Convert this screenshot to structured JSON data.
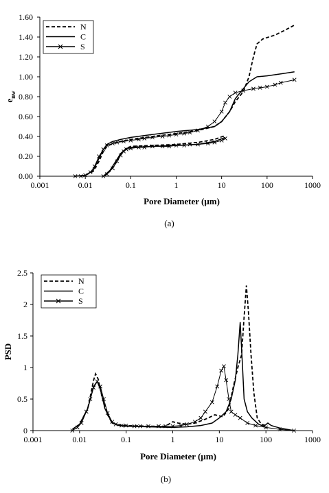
{
  "chart_data": [
    {
      "id": "a",
      "type": "line",
      "caption": "(a)",
      "xlabel": "Pore Diameter (μm)",
      "ylabel": "e",
      "ylabel_sub": "nw",
      "xscale": "log",
      "xlim": [
        0.001,
        1000
      ],
      "ylim": [
        0,
        1.6
      ],
      "xticks": [
        "0.001",
        "0.01",
        "0.1",
        "1",
        "10",
        "100",
        "1000"
      ],
      "yticks": [
        "0.00",
        "0.20",
        "0.40",
        "0.60",
        "0.80",
        "1.00",
        "1.20",
        "1.40",
        "1.60"
      ],
      "legend_position": "top-left",
      "series": [
        {
          "name": "N",
          "style": "dashed",
          "marker": "none",
          "branches": [
            [
              [
                0.006,
                0.0
              ],
              [
                0.01,
                0.01
              ],
              [
                0.015,
                0.05
              ],
              [
                0.02,
                0.15
              ],
              [
                0.025,
                0.25
              ],
              [
                0.03,
                0.3
              ],
              [
                0.04,
                0.33
              ],
              [
                0.06,
                0.35
              ],
              [
                0.1,
                0.37
              ],
              [
                0.3,
                0.4
              ],
              [
                1,
                0.43
              ],
              [
                3,
                0.46
              ],
              [
                7,
                0.5
              ],
              [
                10,
                0.55
              ],
              [
                15,
                0.65
              ],
              [
                20,
                0.75
              ],
              [
                30,
                0.85
              ],
              [
                40,
                1.0
              ],
              [
                50,
                1.2
              ],
              [
                60,
                1.33
              ],
              [
                80,
                1.38
              ],
              [
                150,
                1.42
              ],
              [
                250,
                1.47
              ],
              [
                400,
                1.52
              ]
            ],
            [
              [
                0.025,
                0.0
              ],
              [
                0.035,
                0.05
              ],
              [
                0.05,
                0.15
              ],
              [
                0.06,
                0.22
              ],
              [
                0.08,
                0.28
              ],
              [
                0.1,
                0.3
              ],
              [
                0.3,
                0.31
              ],
              [
                1,
                0.32
              ],
              [
                3,
                0.34
              ],
              [
                7,
                0.37
              ],
              [
                12,
                0.41
              ]
            ]
          ]
        },
        {
          "name": "C",
          "style": "solid",
          "marker": "none",
          "branches": [
            [
              [
                0.006,
                0.0
              ],
              [
                0.01,
                0.01
              ],
              [
                0.015,
                0.06
              ],
              [
                0.02,
                0.18
              ],
              [
                0.025,
                0.27
              ],
              [
                0.03,
                0.32
              ],
              [
                0.04,
                0.35
              ],
              [
                0.06,
                0.37
              ],
              [
                0.1,
                0.39
              ],
              [
                0.3,
                0.42
              ],
              [
                1,
                0.45
              ],
              [
                3,
                0.47
              ],
              [
                7,
                0.5
              ],
              [
                10,
                0.55
              ],
              [
                15,
                0.65
              ],
              [
                20,
                0.78
              ],
              [
                30,
                0.88
              ],
              [
                40,
                0.95
              ],
              [
                60,
                1.0
              ],
              [
                100,
                1.01
              ],
              [
                200,
                1.03
              ],
              [
                400,
                1.05
              ]
            ],
            [
              [
                0.025,
                0.0
              ],
              [
                0.035,
                0.06
              ],
              [
                0.05,
                0.17
              ],
              [
                0.06,
                0.23
              ],
              [
                0.08,
                0.28
              ],
              [
                0.1,
                0.29
              ],
              [
                0.3,
                0.3
              ],
              [
                1,
                0.31
              ],
              [
                3,
                0.32
              ],
              [
                7,
                0.35
              ],
              [
                12,
                0.39
              ]
            ]
          ]
        },
        {
          "name": "S",
          "style": "solid",
          "marker": "x",
          "branches": [
            [
              [
                0.006,
                0.0
              ],
              [
                0.008,
                0.0
              ],
              [
                0.01,
                0.01
              ],
              [
                0.013,
                0.04
              ],
              [
                0.016,
                0.1
              ],
              [
                0.02,
                0.2
              ],
              [
                0.025,
                0.27
              ],
              [
                0.03,
                0.31
              ],
              [
                0.04,
                0.33
              ],
              [
                0.05,
                0.34
              ],
              [
                0.07,
                0.35
              ],
              [
                0.1,
                0.36
              ],
              [
                0.15,
                0.37
              ],
              [
                0.2,
                0.38
              ],
              [
                0.3,
                0.39
              ],
              [
                0.5,
                0.4
              ],
              [
                0.7,
                0.41
              ],
              [
                1,
                0.42
              ],
              [
                1.5,
                0.43
              ],
              [
                2,
                0.44
              ],
              [
                3,
                0.46
              ],
              [
                5,
                0.5
              ],
              [
                7,
                0.55
              ],
              [
                10,
                0.65
              ],
              [
                12,
                0.74
              ],
              [
                15,
                0.8
              ],
              [
                20,
                0.84
              ],
              [
                30,
                0.86
              ],
              [
                50,
                0.88
              ],
              [
                70,
                0.89
              ],
              [
                100,
                0.9
              ],
              [
                150,
                0.92
              ],
              [
                200,
                0.94
              ],
              [
                400,
                0.97
              ]
            ],
            [
              [
                0.025,
                0.0
              ],
              [
                0.03,
                0.02
              ],
              [
                0.04,
                0.08
              ],
              [
                0.05,
                0.15
              ],
              [
                0.06,
                0.21
              ],
              [
                0.07,
                0.25
              ],
              [
                0.08,
                0.27
              ],
              [
                0.1,
                0.28
              ],
              [
                0.15,
                0.29
              ],
              [
                0.2,
                0.29
              ],
              [
                0.3,
                0.3
              ],
              [
                0.5,
                0.3
              ],
              [
                0.7,
                0.3
              ],
              [
                1,
                0.31
              ],
              [
                1.5,
                0.31
              ],
              [
                2,
                0.32
              ],
              [
                3,
                0.32
              ],
              [
                5,
                0.33
              ],
              [
                7,
                0.34
              ],
              [
                10,
                0.36
              ],
              [
                12,
                0.38
              ]
            ]
          ]
        }
      ]
    },
    {
      "id": "b",
      "type": "line",
      "caption": "(b)",
      "xlabel": "Pore Diameter (μm)",
      "ylabel": "PSD",
      "xscale": "log",
      "xlim": [
        0.001,
        1000
      ],
      "ylim": [
        0,
        2.5
      ],
      "xticks": [
        "0.001",
        "0.01",
        "0.1",
        "1",
        "10",
        "100",
        "1000"
      ],
      "yticks": [
        "0",
        "0.5",
        "1",
        "1.5",
        "2",
        "2.5"
      ],
      "legend_position": "top-left",
      "series": [
        {
          "name": "N",
          "style": "dashed",
          "marker": "none",
          "branches": [
            [
              [
                0.007,
                0.02
              ],
              [
                0.01,
                0.1
              ],
              [
                0.015,
                0.35
              ],
              [
                0.02,
                0.8
              ],
              [
                0.022,
                0.9
              ],
              [
                0.025,
                0.82
              ],
              [
                0.03,
                0.55
              ],
              [
                0.04,
                0.25
              ],
              [
                0.05,
                0.12
              ],
              [
                0.07,
                0.09
              ],
              [
                0.1,
                0.08
              ],
              [
                0.3,
                0.07
              ],
              [
                0.7,
                0.07
              ],
              [
                1,
                0.14
              ],
              [
                1.3,
                0.12
              ],
              [
                2,
                0.1
              ],
              [
                3,
                0.12
              ],
              [
                5,
                0.18
              ],
              [
                8,
                0.25
              ],
              [
                12,
                0.22
              ],
              [
                16,
                0.35
              ],
              [
                20,
                0.7
              ],
              [
                25,
                1.0
              ],
              [
                30,
                1.2
              ],
              [
                34,
                1.8
              ],
              [
                38,
                2.3
              ],
              [
                42,
                1.9
              ],
              [
                48,
                1.2
              ],
              [
                55,
                0.6
              ],
              [
                65,
                0.2
              ],
              [
                80,
                0.1
              ],
              [
                100,
                0.08
              ]
            ]
          ]
        },
        {
          "name": "C",
          "style": "solid",
          "marker": "none",
          "branches": [
            [
              [
                0.007,
                0.02
              ],
              [
                0.01,
                0.1
              ],
              [
                0.015,
                0.35
              ],
              [
                0.02,
                0.7
              ],
              [
                0.024,
                0.78
              ],
              [
                0.028,
                0.65
              ],
              [
                0.035,
                0.35
              ],
              [
                0.05,
                0.12
              ],
              [
                0.07,
                0.08
              ],
              [
                0.1,
                0.07
              ],
              [
                0.3,
                0.06
              ],
              [
                1,
                0.05
              ],
              [
                2,
                0.06
              ],
              [
                4,
                0.08
              ],
              [
                7,
                0.12
              ],
              [
                10,
                0.2
              ],
              [
                14,
                0.3
              ],
              [
                18,
                0.5
              ],
              [
                22,
                0.8
              ],
              [
                25,
                1.2
              ],
              [
                28,
                1.72
              ],
              [
                31,
                1.1
              ],
              [
                34,
                0.5
              ],
              [
                40,
                0.3
              ],
              [
                50,
                0.2
              ],
              [
                70,
                0.1
              ],
              [
                90,
                0.07
              ],
              [
                110,
                0.12
              ],
              [
                130,
                0.08
              ],
              [
                200,
                0.04
              ],
              [
                400,
                0.0
              ]
            ]
          ]
        },
        {
          "name": "S",
          "style": "solid",
          "marker": "x",
          "branches": [
            [
              [
                0.007,
                0.0
              ],
              [
                0.009,
                0.05
              ],
              [
                0.011,
                0.12
              ],
              [
                0.014,
                0.3
              ],
              [
                0.017,
                0.5
              ],
              [
                0.02,
                0.68
              ],
              [
                0.024,
                0.78
              ],
              [
                0.028,
                0.7
              ],
              [
                0.033,
                0.5
              ],
              [
                0.04,
                0.28
              ],
              [
                0.05,
                0.14
              ],
              [
                0.06,
                0.1
              ],
              [
                0.08,
                0.08
              ],
              [
                0.1,
                0.08
              ],
              [
                0.15,
                0.07
              ],
              [
                0.2,
                0.07
              ],
              [
                0.3,
                0.07
              ],
              [
                0.5,
                0.07
              ],
              [
                0.7,
                0.07
              ],
              [
                1,
                0.07
              ],
              [
                1.5,
                0.08
              ],
              [
                2,
                0.1
              ],
              [
                3,
                0.14
              ],
              [
                4,
                0.2
              ],
              [
                5,
                0.3
              ],
              [
                7,
                0.45
              ],
              [
                9,
                0.7
              ],
              [
                11,
                0.95
              ],
              [
                12.5,
                1.02
              ],
              [
                14,
                0.8
              ],
              [
                16,
                0.5
              ],
              [
                18,
                0.3
              ],
              [
                22,
                0.25
              ],
              [
                28,
                0.2
              ],
              [
                40,
                0.12
              ],
              [
                60,
                0.08
              ],
              [
                100,
                0.05
              ],
              [
                200,
                0.02
              ],
              [
                400,
                0.0
              ]
            ]
          ]
        }
      ]
    }
  ]
}
